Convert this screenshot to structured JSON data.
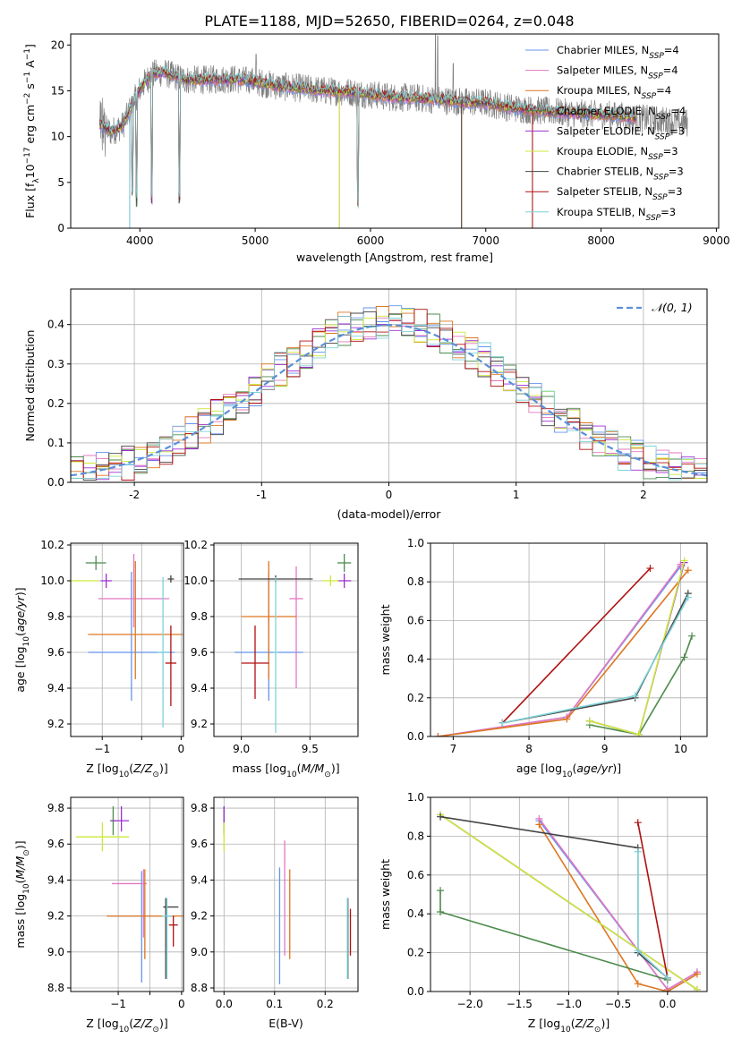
{
  "figure_title": "PLATE=1188, MJD=52650, FIBERID=0264, z=0.048",
  "series_colors": [
    "#6495ED",
    "#E377C2",
    "#DD7722",
    "#4C8B4C",
    "#9B30D0",
    "#CCE93A",
    "#444444",
    "#B01010",
    "#7FD3D8"
  ],
  "chart_data": [
    {
      "type": "line",
      "title": "PLATE=1188, MJD=52650, FIBERID=0264, z=0.048",
      "xlabel": "wavelength [Angstrom, rest frame]",
      "ylabel": "Flux [f_λ 10^-17 erg cm^-2 s^-1 A^-1]",
      "xlim": [
        3400,
        9020
      ],
      "ylim": [
        0,
        21.2
      ],
      "xticks": [
        4000,
        5000,
        6000,
        7000,
        8000,
        9000
      ],
      "yticks": [
        0,
        5,
        10,
        15,
        20
      ],
      "legend": "top-right",
      "legend_entries": [
        "Chabrier MILES, N_SSP=4",
        "Salpeter MILES, N_SSP=4",
        "Kroupa MILES, N_SSP=4",
        "Chabrier ELODIE, N_SSP=4",
        "Salpeter ELODIE, N_SSP=3",
        "Kroupa ELODIE, N_SSP=3",
        "Chabrier STELIB, N_SSP=3",
        "Salpeter STELIB, N_SSP=3",
        "Kroupa STELIB, N_SSP=3"
      ],
      "data_range": [
        3650,
        8750
      ],
      "continuum": [
        [
          3650,
          11.3
        ],
        [
          3750,
          10.5
        ],
        [
          3850,
          11.2
        ],
        [
          4000,
          15.2
        ],
        [
          4100,
          16.8
        ],
        [
          4200,
          17.0
        ],
        [
          4400,
          16.2
        ],
        [
          4600,
          16.2
        ],
        [
          4800,
          16.3
        ],
        [
          5000,
          16.0
        ],
        [
          5200,
          15.5
        ],
        [
          5400,
          15.3
        ],
        [
          5600,
          15.0
        ],
        [
          5800,
          14.9
        ],
        [
          6000,
          14.6
        ],
        [
          6200,
          14.3
        ],
        [
          6400,
          14.2
        ],
        [
          6600,
          14.0
        ],
        [
          6800,
          13.8
        ],
        [
          7000,
          13.7
        ],
        [
          7200,
          13.2
        ],
        [
          7400,
          12.9
        ],
        [
          7600,
          12.7
        ],
        [
          7800,
          12.5
        ],
        [
          8000,
          12.4
        ],
        [
          8200,
          12.2
        ],
        [
          8400,
          11.9
        ],
        [
          8750,
          11.5
        ]
      ],
      "model_dips": [
        [
          3934,
          3.0
        ],
        [
          3969,
          2.0
        ],
        [
          4101,
          2.5
        ],
        [
          4341,
          2.4
        ],
        [
          5890,
          1.5
        ]
      ],
      "model_drops": [
        [
          3912,
          0
        ],
        [
          5730,
          0
        ],
        [
          6790,
          0
        ],
        [
          7405,
          0
        ]
      ],
      "observed_spikes": [
        [
          6563,
          24
        ],
        [
          6583,
          21
        ],
        [
          6717,
          18
        ],
        [
          4960,
          17
        ],
        [
          5007,
          19
        ]
      ]
    },
    {
      "type": "histogram",
      "xlabel": "(data-model)/error",
      "ylabel": "Normed distribution",
      "xlim": [
        -2.5,
        2.5
      ],
      "ylim": [
        0,
        0.49
      ],
      "xticks": [
        -2,
        -1,
        0,
        1,
        2
      ],
      "yticks": [
        0.0,
        0.1,
        0.2,
        0.3,
        0.4
      ],
      "bin_width": 0.1,
      "reference_curve": "N(0,1)",
      "legend": "top-right",
      "legend_label": "𝒩(0, 1)"
    },
    {
      "type": "scatter",
      "xlabel": "Z [log10(Z/Z⊙)]",
      "ylabel": "age [log10(age/yr)]",
      "xlim": [
        -1.4,
        0.03
      ],
      "ylim": [
        9.13,
        10.21
      ],
      "xticks": [
        -1,
        -0.5,
        0
      ],
      "xticklabels": [
        "−1",
        "",
        "0"
      ],
      "yticks": [
        9.2,
        9.4,
        9.6,
        9.8,
        10.0,
        10.2
      ],
      "points": [
        {
          "series": 0,
          "x": -0.63,
          "y": 9.6,
          "xerr": [
            0.55,
            0.55
          ],
          "yerr": [
            0.27,
            0.45
          ]
        },
        {
          "series": 1,
          "x": -0.6,
          "y": 9.9,
          "xerr": [
            0.45,
            0.45
          ],
          "yerr": [
            0.16,
            0.25
          ]
        },
        {
          "series": 2,
          "x": -0.58,
          "y": 9.7,
          "xerr": [
            0.6,
            0.6
          ],
          "yerr": [
            0.25,
            0.41
          ]
        },
        {
          "series": 3,
          "x": -1.08,
          "y": 10.1,
          "xerr": [
            0.13,
            0.13
          ],
          "yerr": [
            0.04,
            0.04
          ]
        },
        {
          "series": 4,
          "x": -0.95,
          "y": 10.0,
          "xerr": [
            0.07,
            0.07
          ],
          "yerr": [
            0.04,
            0.04
          ]
        },
        {
          "series": 5,
          "x": -1.25,
          "y": 10.0,
          "xerr": [
            0.2,
            0.2
          ],
          "yerr": [
            0,
            0
          ]
        },
        {
          "series": 6,
          "x": -0.13,
          "y": 10.01,
          "xerr": [
            0.04,
            0.04
          ],
          "yerr": [
            0.02,
            0.02
          ]
        },
        {
          "series": 7,
          "x": -0.13,
          "y": 9.54,
          "xerr": [
            0.07,
            0.07
          ],
          "yerr": [
            0.24,
            0.21
          ]
        },
        {
          "series": 8,
          "x": -0.23,
          "y": 9.6,
          "xerr": [
            0.08,
            0.08
          ],
          "yerr": [
            0.42,
            0.42
          ]
        }
      ]
    },
    {
      "type": "scatter",
      "xlabel": "mass [log10(M/M⊙)]",
      "ylabel": "",
      "xlim": [
        8.8,
        9.85
      ],
      "ylim": [
        9.13,
        10.21
      ],
      "xticks": [
        9.0,
        9.5
      ],
      "xticklabels": [
        "9.0",
        "9.5"
      ],
      "yticks": [
        9.2,
        9.4,
        9.6,
        9.8,
        10.0,
        10.2
      ],
      "points": [
        {
          "series": 0,
          "x": 9.2,
          "y": 9.6,
          "xerr": [
            0.25,
            0.25
          ],
          "yerr": [
            0.27,
            0.45
          ]
        },
        {
          "series": 1,
          "x": 9.4,
          "y": 9.9,
          "xerr": [
            0.05,
            0.05
          ],
          "yerr": [
            0.5,
            0.18
          ]
        },
        {
          "series": 2,
          "x": 9.2,
          "y": 9.8,
          "xerr": [
            0.2,
            0.2
          ],
          "yerr": [
            0.35,
            0.31
          ]
        },
        {
          "series": 3,
          "x": 9.75,
          "y": 10.1,
          "xerr": [
            0.05,
            0.05
          ],
          "yerr": [
            0.05,
            0.05
          ]
        },
        {
          "series": 4,
          "x": 9.75,
          "y": 10.0,
          "xerr": [
            0.05,
            0.05
          ],
          "yerr": [
            0.04,
            0.04
          ]
        },
        {
          "series": 5,
          "x": 9.65,
          "y": 10.0,
          "xerr": [
            0.06,
            0.06
          ],
          "yerr": [
            0.03,
            0.03
          ]
        },
        {
          "series": 6,
          "x": 9.25,
          "y": 10.01,
          "xerr": [
            0.27,
            0.27
          ],
          "yerr": [
            0.02,
            0.02
          ]
        },
        {
          "series": 7,
          "x": 9.1,
          "y": 9.54,
          "xerr": [
            0.1,
            0.1
          ],
          "yerr": [
            0.2,
            0.21
          ]
        },
        {
          "series": 8,
          "x": 9.25,
          "y": 9.6,
          "xerr": [
            0.02,
            0.02
          ],
          "yerr": [
            0.45,
            0.42
          ]
        }
      ]
    },
    {
      "type": "line",
      "xlabel": "age [log10(age/yr)]",
      "ylabel": "mass weight",
      "xlim": [
        6.7,
        10.35
      ],
      "ylim": [
        0,
        1.0
      ],
      "xticks": [
        7,
        8,
        9,
        10
      ],
      "yticks": [
        0.0,
        0.2,
        0.4,
        0.6,
        0.8,
        1.0
      ],
      "series": [
        {
          "color": 0,
          "x": [
            6.8,
            8.5,
            10.0
          ],
          "y": [
            0.0,
            0.1,
            0.88
          ]
        },
        {
          "color": 1,
          "x": [
            6.8,
            8.5,
            10.0
          ],
          "y": [
            0.0,
            0.1,
            0.89
          ]
        },
        {
          "color": 2,
          "x": [
            6.8,
            8.5,
            10.1
          ],
          "y": [
            0.0,
            0.09,
            0.86
          ]
        },
        {
          "color": 3,
          "x": [
            8.8,
            9.45,
            10.05,
            10.15
          ],
          "y": [
            0.06,
            0.01,
            0.41,
            0.52
          ]
        },
        {
          "color": 4,
          "x": [
            8.8,
            9.45,
            10.05
          ],
          "y": [
            0.08,
            0.01,
            0.9
          ]
        },
        {
          "color": 5,
          "x": [
            8.8,
            9.45,
            10.05
          ],
          "y": [
            0.08,
            0.01,
            0.91
          ]
        },
        {
          "color": 6,
          "x": [
            7.65,
            9.4,
            10.1
          ],
          "y": [
            0.07,
            0.2,
            0.74
          ]
        },
        {
          "color": 7,
          "x": [
            7.65,
            9.6
          ],
          "y": [
            0.07,
            0.87
          ]
        },
        {
          "color": 8,
          "x": [
            7.65,
            9.4,
            10.1
          ],
          "y": [
            0.07,
            0.21,
            0.72
          ]
        }
      ]
    },
    {
      "type": "scatter",
      "xlabel": "Z [log10(Z/Z⊙)]",
      "ylabel": "mass [log10(M/M⊙)]",
      "xlim": [
        -1.75,
        0.03
      ],
      "ylim": [
        8.78,
        9.86
      ],
      "xticks": [
        -1,
        -0.5,
        0
      ],
      "xticklabels": [
        "−1",
        "",
        "0"
      ],
      "yticks": [
        8.8,
        9.0,
        9.2,
        9.4,
        9.6,
        9.8
      ],
      "points": [
        {
          "series": 0,
          "x": -0.63,
          "y": 9.2,
          "xerr": [
            0.55,
            0.55
          ],
          "yerr": [
            0.37,
            0.25
          ]
        },
        {
          "series": 1,
          "x": -0.6,
          "y": 9.38,
          "xerr": [
            0.5,
            0.05
          ],
          "yerr": [
            0.3,
            0.08
          ]
        },
        {
          "series": 2,
          "x": -0.58,
          "y": 9.2,
          "xerr": [
            0.6,
            0.6
          ],
          "yerr": [
            0.24,
            0.26
          ]
        },
        {
          "series": 3,
          "x": -1.08,
          "y": 9.73,
          "xerr": [
            0.05,
            0.05
          ],
          "yerr": [
            0.08,
            0.08
          ]
        },
        {
          "series": 4,
          "x": -0.95,
          "y": 9.73,
          "xerr": [
            0.16,
            0.12
          ],
          "yerr": [
            0.06,
            0.08
          ]
        },
        {
          "series": 5,
          "x": -1.25,
          "y": 9.64,
          "xerr": [
            0.42,
            0.42
          ],
          "yerr": [
            0.08,
            0.08
          ]
        },
        {
          "series": 6,
          "x": -0.25,
          "y": 9.25,
          "xerr": [
            0.04,
            0.2
          ],
          "yerr": [
            0.4,
            0.05
          ]
        },
        {
          "series": 7,
          "x": -0.13,
          "y": 9.15,
          "xerr": [
            0.07,
            0.07
          ],
          "yerr": [
            0.12,
            0.05
          ]
        },
        {
          "series": 8,
          "x": -0.23,
          "y": 9.2,
          "xerr": [
            0.08,
            0.08
          ],
          "yerr": [
            0.35,
            0.1
          ]
        }
      ]
    },
    {
      "type": "scatter",
      "xlabel": "E(B-V)",
      "ylabel": "",
      "xlim": [
        -0.02,
        0.265
      ],
      "ylim": [
        8.78,
        9.86
      ],
      "xticks": [
        0.0,
        0.1,
        0.2
      ],
      "xticklabels": [
        "0.0",
        "0.1",
        "0.2"
      ],
      "yticks": [
        8.8,
        9.0,
        9.2,
        9.4,
        9.6,
        9.8
      ],
      "points": [
        {
          "series": 0,
          "x": 0.11,
          "y": 9.2,
          "xerr": [
            0,
            0
          ],
          "yerr": [
            0.38,
            0.27
          ]
        },
        {
          "series": 1,
          "x": 0.12,
          "y": 9.38,
          "xerr": [
            0,
            0
          ],
          "yerr": [
            0.4,
            0.24
          ]
        },
        {
          "series": 2,
          "x": 0.13,
          "y": 9.2,
          "xerr": [
            0,
            0
          ],
          "yerr": [
            0.24,
            0.26
          ]
        },
        {
          "series": 3,
          "x": 0.0,
          "y": 9.73,
          "xerr": [
            0,
            0
          ],
          "yerr": [
            0.08,
            0.08
          ]
        },
        {
          "series": 4,
          "x": 0.0,
          "y": 9.73,
          "xerr": [
            0,
            0
          ],
          "yerr": [
            0.06,
            0.08
          ]
        },
        {
          "series": 5,
          "x": 0.0,
          "y": 9.64,
          "xerr": [
            0,
            0
          ],
          "yerr": [
            0.08,
            0.08
          ]
        },
        {
          "series": 6,
          "x": 0.245,
          "y": 9.25,
          "xerr": [
            0,
            0
          ],
          "yerr": [
            0.4,
            0.05
          ]
        },
        {
          "series": 7,
          "x": 0.25,
          "y": 9.1,
          "xerr": [
            0,
            0
          ],
          "yerr": [
            0.12,
            0.14
          ]
        },
        {
          "series": 8,
          "x": 0.244,
          "y": 9.2,
          "xerr": [
            0,
            0
          ],
          "yerr": [
            0.35,
            0.1
          ]
        }
      ]
    },
    {
      "type": "line",
      "xlabel": "Z [log10(Z/Z⊙)]",
      "ylabel": "mass weight",
      "xlim": [
        -2.4,
        0.4
      ],
      "ylim": [
        0,
        1.0
      ],
      "xticks": [
        -2.0,
        -1.5,
        -1.0,
        -0.5,
        0.0
      ],
      "yticks": [
        0.0,
        0.2,
        0.4,
        0.6,
        0.8,
        1.0
      ],
      "series": [
        {
          "color": 0,
          "x": [
            -1.3,
            0.0,
            0.3
          ],
          "y": [
            0.88,
            0.01,
            0.1
          ]
        },
        {
          "color": 1,
          "x": [
            -1.3,
            0.0,
            0.3
          ],
          "y": [
            0.89,
            0.01,
            0.1
          ]
        },
        {
          "color": 2,
          "x": [
            -1.3,
            -0.3,
            0.0,
            0.3
          ],
          "y": [
            0.86,
            0.04,
            0.0,
            0.09
          ]
        },
        {
          "color": 3,
          "x": [
            -2.3,
            -2.3,
            0.0
          ],
          "y": [
            0.52,
            0.41,
            0.06
          ]
        },
        {
          "color": 4,
          "x": [
            -2.3,
            0.3
          ],
          "y": [
            0.91,
            0.01
          ]
        },
        {
          "color": 5,
          "x": [
            -2.3,
            0.3
          ],
          "y": [
            0.91,
            0.01
          ]
        },
        {
          "color": 6,
          "x": [
            -2.3,
            -0.3,
            -0.3,
            0.0
          ],
          "y": [
            0.9,
            0.74,
            0.2,
            0.07
          ]
        },
        {
          "color": 7,
          "x": [
            -0.3,
            0.0
          ],
          "y": [
            0.87,
            0.07
          ]
        },
        {
          "color": 8,
          "x": [
            -0.3,
            -0.3,
            0.0
          ],
          "y": [
            0.72,
            0.21,
            0.07
          ]
        }
      ]
    }
  ]
}
